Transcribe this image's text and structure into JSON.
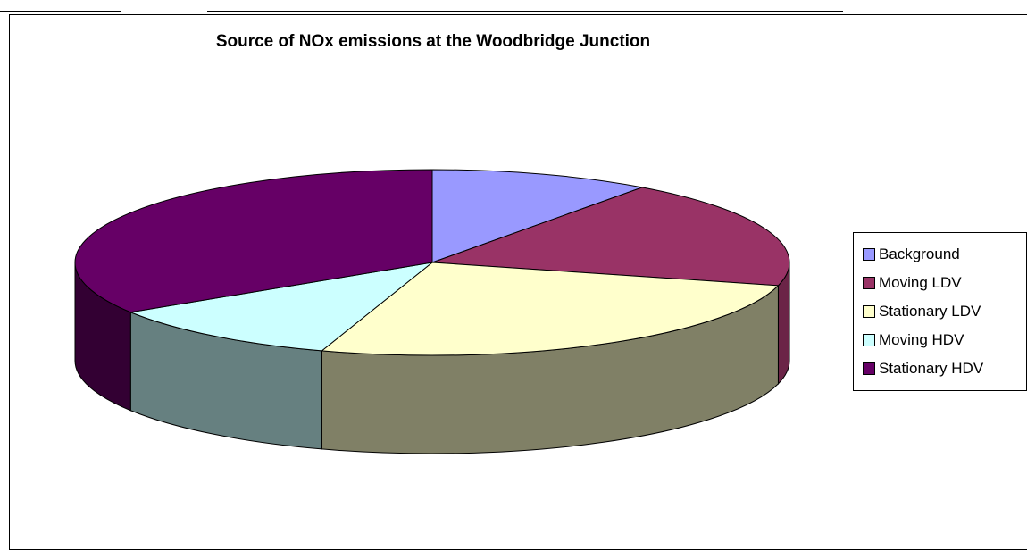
{
  "chart_data": {
    "type": "pie",
    "title": "Source of NOx emissions at the Woodbridge Junction",
    "style": "3d",
    "legend_position": "right",
    "slices": [
      {
        "label": "Background",
        "value": 10,
        "color": "#9999FF",
        "side_color": "#6B6BB3"
      },
      {
        "label": "Moving LDV",
        "value": 19,
        "color": "#993366",
        "side_color": "#6B2447"
      },
      {
        "label": "Stationary LDV",
        "value": 26,
        "color": "#FFFFCC",
        "side_color": "#808066"
      },
      {
        "label": "Moving HDV",
        "value": 11,
        "color": "#CCFFFF",
        "side_color": "#668080"
      },
      {
        "label": "Stationary HDV",
        "value": 34,
        "color": "#660066",
        "side_color": "#330033"
      }
    ]
  }
}
